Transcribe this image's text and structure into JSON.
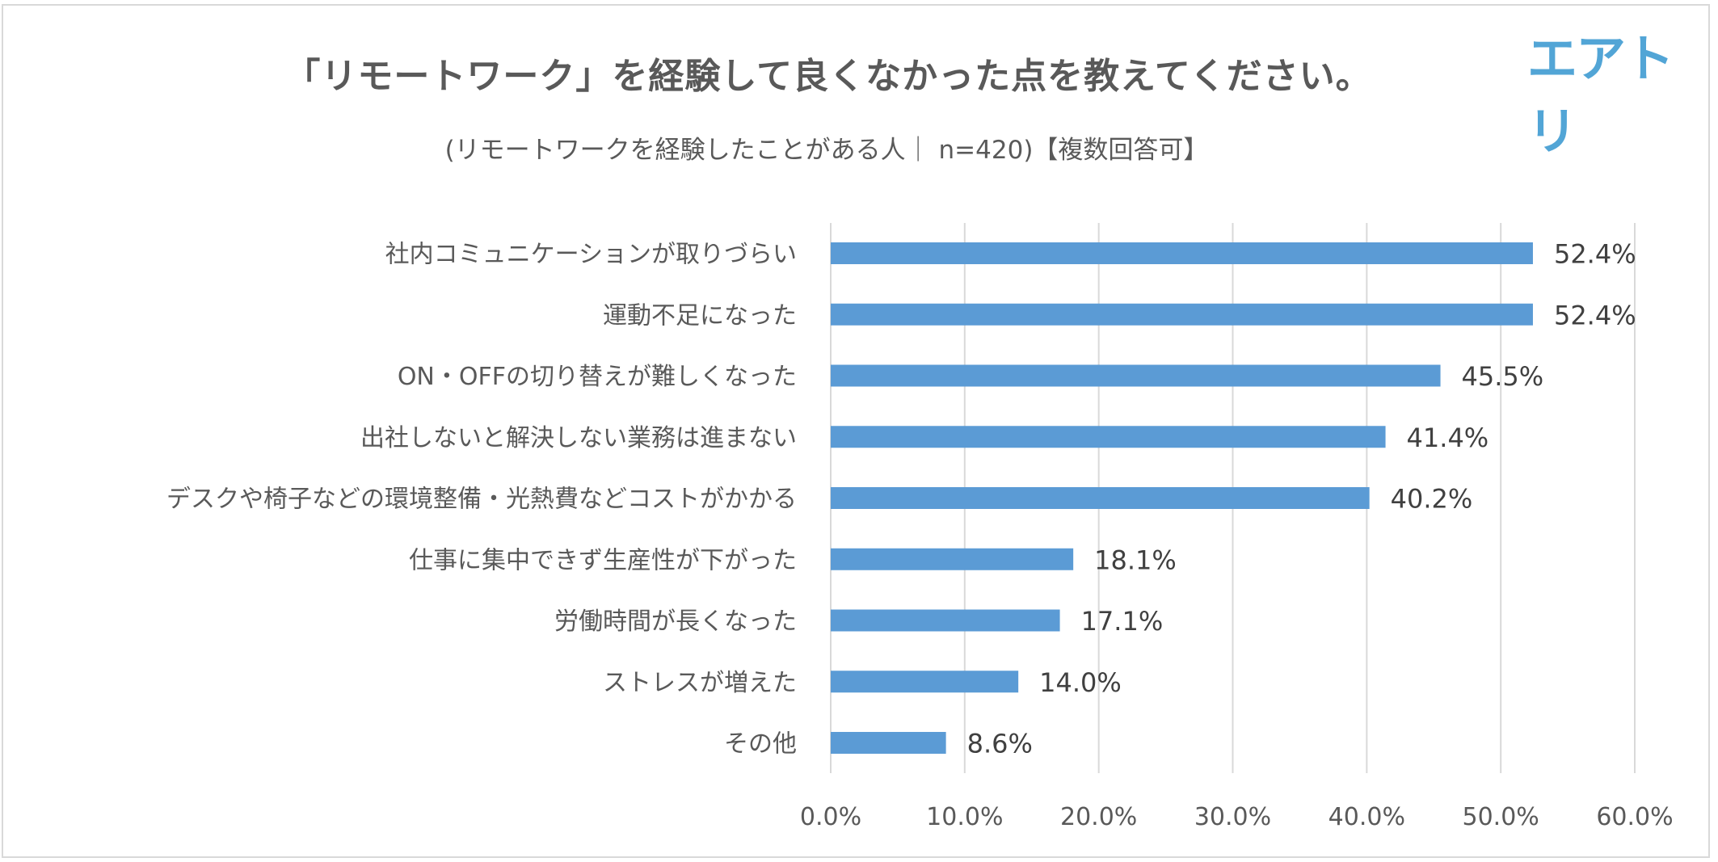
{
  "logo": "エアトリ",
  "colors": {
    "bar": "#5b9bd5",
    "grid": "#d9d9d9",
    "text": "#595959",
    "value_text": "#404040",
    "logo": "#52a5d6"
  },
  "chart_data": {
    "type": "bar",
    "orientation": "horizontal",
    "title": "「リモートワーク」を経験して良くなかった点を教えてください。",
    "subtitle": "(リモートワークを経験したことがある人｜ n=420)【複数回答可】",
    "categories": [
      "社内コミュニケーションが取りづらい",
      "運動不足になった",
      "ON・OFFの切り替えが難しくなった",
      "出社しないと解決しない業務は進まない",
      "デスクや椅子などの環境整備・光熱費などコストがかかる",
      "仕事に集中できず生産性が下がった",
      "労働時間が長くなった",
      "ストレスが増えた",
      "その他"
    ],
    "values": [
      52.4,
      52.4,
      45.5,
      41.4,
      40.2,
      18.1,
      17.1,
      14.0,
      8.6
    ],
    "value_labels": [
      "52.4%",
      "52.4%",
      "45.5%",
      "41.4%",
      "40.2%",
      "18.1%",
      "17.1%",
      "14.0%",
      "8.6%"
    ],
    "xlim": [
      0,
      60
    ],
    "x_ticks": [
      0,
      10,
      20,
      30,
      40,
      50,
      60
    ],
    "x_tick_labels": [
      "0.0%",
      "10.0%",
      "20.0%",
      "30.0%",
      "40.0%",
      "50.0%",
      "60.0%"
    ],
    "grid": "vertical",
    "legend": "none"
  }
}
